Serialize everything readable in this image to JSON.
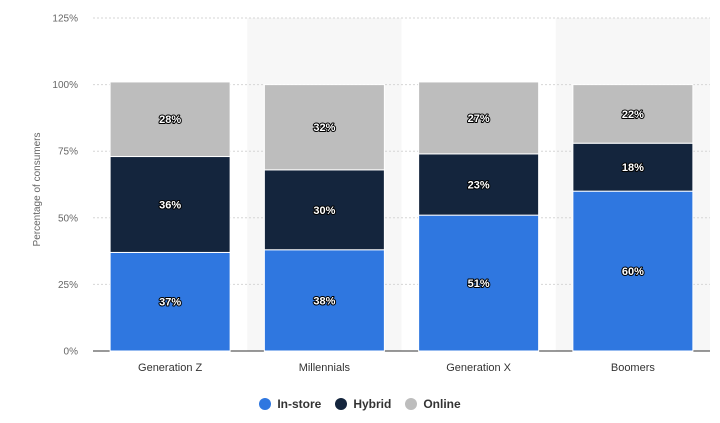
{
  "chart_data": {
    "type": "bar",
    "stacked": true,
    "ylabel": "Percentage of consumers",
    "ylim": [
      0,
      125
    ],
    "yticks": [
      "0%",
      "25%",
      "50%",
      "75%",
      "100%",
      "125%"
    ],
    "ytick_values": [
      0,
      25,
      50,
      75,
      100,
      125
    ],
    "categories": [
      "Generation Z",
      "Millennials",
      "Generation X",
      "Boomers"
    ],
    "series": [
      {
        "name": "In-store",
        "color": "#2f77e0",
        "values": [
          37,
          38,
          51,
          60
        ],
        "labels": [
          "37%",
          "38%",
          "51%",
          "60%"
        ]
      },
      {
        "name": "Hybrid",
        "color": "#14253d",
        "values": [
          36,
          30,
          23,
          18
        ],
        "labels": [
          "36%",
          "30%",
          "23%",
          "18%"
        ]
      },
      {
        "name": "Online",
        "color": "#bdbdbd",
        "values": [
          28,
          32,
          27,
          22
        ],
        "labels": [
          "28%",
          "32%",
          "27%",
          "22%"
        ]
      }
    ],
    "grid": true,
    "legend_position": "bottom"
  }
}
